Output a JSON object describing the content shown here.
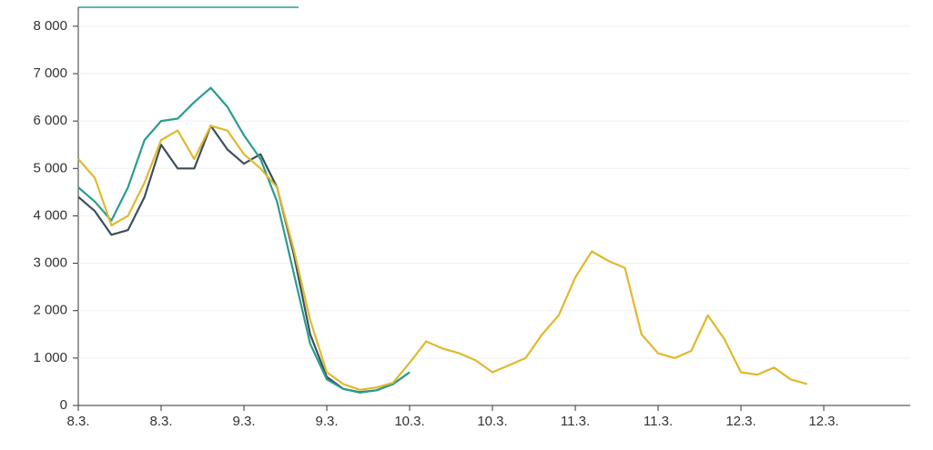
{
  "chart_data": {
    "type": "line",
    "categories": [
      "8.3.",
      null,
      null,
      null,
      null,
      "8.3.",
      null,
      null,
      null,
      null,
      "9.3.",
      null,
      null,
      null,
      null,
      "9.3.",
      null,
      null,
      null,
      null,
      "10.3.",
      null,
      null,
      null,
      null,
      "10.3.",
      null,
      null,
      null,
      null,
      "11.3.",
      null,
      null,
      null,
      null,
      "11.3.",
      null,
      null,
      null,
      null,
      "12.3.",
      null,
      null,
      null,
      null,
      "12.3.",
      null,
      null,
      null,
      null,
      null
    ],
    "series": [
      {
        "color": "#3d4f5c",
        "values": [
          4400,
          4100,
          3600,
          3700,
          4400,
          5500,
          5000,
          5000,
          5900,
          5400,
          5100,
          5300,
          4600,
          3200,
          1500,
          600,
          350,
          280,
          320,
          450,
          700,
          null,
          null,
          null,
          null,
          null,
          null,
          null,
          null,
          null,
          null,
          null,
          null,
          null,
          null,
          null,
          null,
          null,
          null,
          null,
          null,
          null,
          null,
          null,
          null,
          null,
          null,
          null,
          null,
          null,
          null
        ]
      },
      {
        "color": "#2a9d8f",
        "values": [
          4600,
          4300,
          3900,
          4600,
          5600,
          6000,
          6050,
          6400,
          6700,
          6300,
          5700,
          5200,
          4300,
          2800,
          1300,
          550,
          350,
          270,
          320,
          450,
          700,
          null,
          null,
          null,
          null,
          null,
          null,
          null,
          null,
          null,
          null,
          null,
          null,
          null,
          null,
          null,
          null,
          null,
          null,
          null,
          null,
          null,
          null,
          null,
          null,
          null,
          null,
          null,
          null,
          null,
          null
        ]
      },
      {
        "color": "#e0b92c",
        "values": [
          5200,
          4800,
          3800,
          4000,
          4700,
          5600,
          5800,
          5200,
          5900,
          5800,
          5300,
          5000,
          4600,
          3300,
          1800,
          700,
          450,
          330,
          380,
          480,
          900,
          1350,
          1200,
          1100,
          950,
          700,
          850,
          1000,
          1500,
          1900,
          2700,
          3250,
          3050,
          2900,
          1500,
          1100,
          1000,
          1150,
          1900,
          1400,
          700,
          650,
          800,
          550,
          450,
          null,
          null,
          null,
          null,
          null,
          null
        ]
      }
    ],
    "ylim": [
      0,
      8400
    ],
    "yticks": [
      0,
      {
        "value": 1000,
        "label": "1 000"
      },
      {
        "value": 2000,
        "label": "2 000"
      },
      {
        "value": 3000,
        "label": "3 000"
      },
      {
        "value": 4000,
        "label": "4 000"
      },
      {
        "value": 5000,
        "label": "5 000"
      },
      {
        "value": 6000,
        "label": "6 000"
      },
      {
        "value": 7000,
        "label": "7 000"
      },
      {
        "value": 8000,
        "label": "8 000"
      }
    ],
    "grid": true
  }
}
